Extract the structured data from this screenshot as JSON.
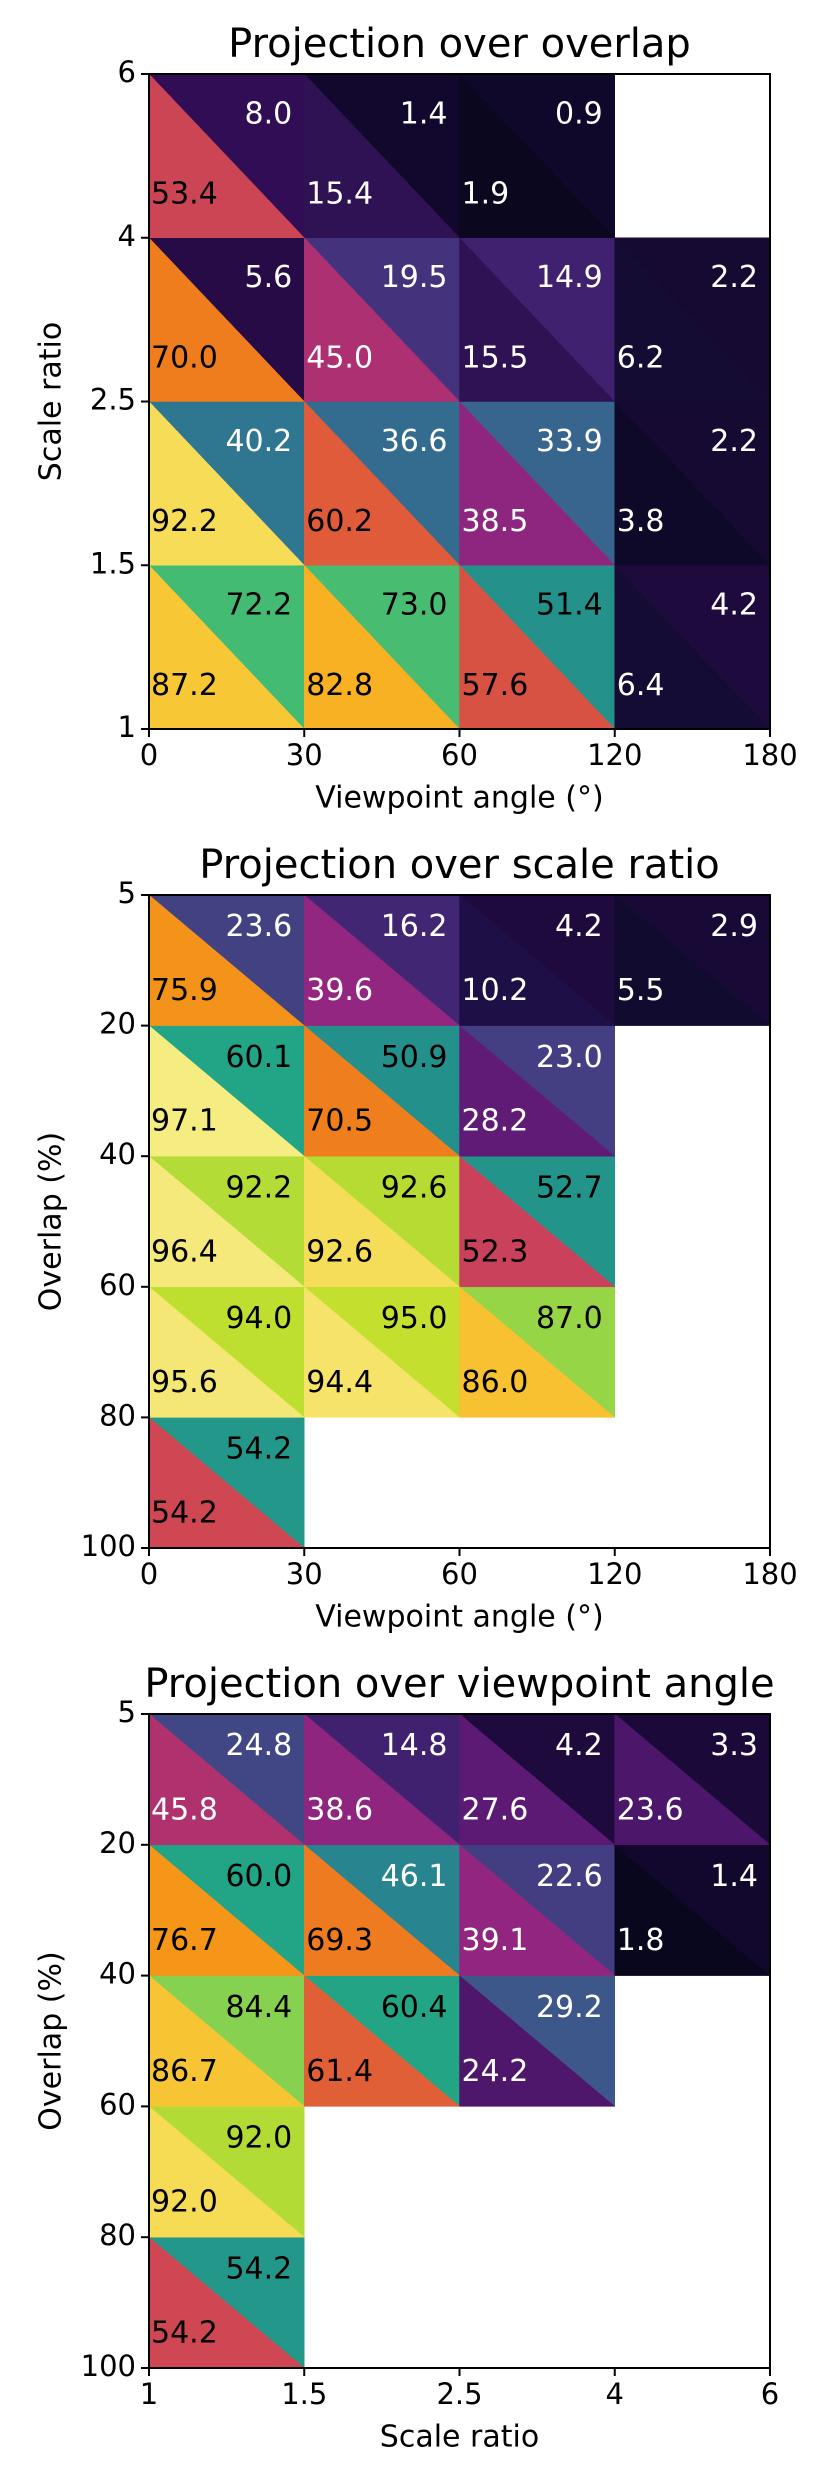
{
  "chart_data": [
    {
      "type": "triangle-heatmap",
      "title": "Projection over overlap",
      "xlabel": "Viewpoint angle (°)",
      "ylabel": "Scale ratio",
      "xticks": [
        0,
        30,
        60,
        120,
        180
      ],
      "yticks": [
        1,
        1.5,
        2.5,
        4,
        6
      ],
      "y_inverted": false,
      "clim": [
        0,
        100
      ],
      "upper": {
        "values": [
          [
            72.2,
            73.0,
            51.4,
            4.2
          ],
          [
            40.2,
            36.6,
            33.9,
            2.2
          ],
          [
            5.6,
            19.5,
            14.9,
            2.2
          ],
          [
            8.0,
            1.4,
            0.9,
            null
          ]
        ],
        "value_labels": [
          [
            "72.2",
            "73.0",
            "51.4",
            "4.2"
          ],
          [
            "40.2",
            "36.6",
            "33.9",
            "2.2"
          ],
          [
            "5.6",
            "19.5",
            "14.9",
            "2.2"
          ],
          [
            "8.0",
            "1.4",
            "0.9",
            null
          ]
        ]
      },
      "lower": {
        "values": [
          [
            87.2,
            82.8,
            57.6,
            6.4
          ],
          [
            92.2,
            60.2,
            38.5,
            3.8
          ],
          [
            70.0,
            45.0,
            15.5,
            6.2
          ],
          [
            53.4,
            15.4,
            1.9,
            null
          ]
        ],
        "value_labels": [
          [
            "87.2",
            "82.8",
            "57.6",
            "6.4"
          ],
          [
            "92.2",
            "60.2",
            "38.5",
            "3.8"
          ],
          [
            "70.0",
            "45.0",
            "15.5",
            "6.2"
          ],
          [
            "53.4",
            "15.4",
            "1.9",
            null
          ]
        ]
      },
      "colormaps": {
        "upper": [
          "#0b0724",
          "#3b0f63",
          "#45347e",
          "#3d5a8c",
          "#2f7590",
          "#248e8c",
          "#22a486",
          "#38b779",
          "#6ccb5e",
          "#a8d93c",
          "#dfe51f"
        ],
        "lower": [
          "#050516",
          "#1d1045",
          "#3c1461",
          "#681c7a",
          "#952680",
          "#c23a63",
          "#df5a3a",
          "#ef7d1d",
          "#f8a316",
          "#f6d543",
          "#f4f59c"
        ]
      }
    },
    {
      "type": "triangle-heatmap",
      "title": "Projection over scale ratio",
      "xlabel": "Viewpoint angle (°)",
      "ylabel": "Overlap (%)",
      "xticks": [
        0,
        30,
        60,
        120,
        180
      ],
      "yticks": [
        5,
        20,
        40,
        60,
        80,
        100
      ],
      "y_inverted": true,
      "clim": [
        0,
        100
      ],
      "upper": {
        "values": [
          [
            23.6,
            16.2,
            4.2,
            2.9
          ],
          [
            60.1,
            50.9,
            23.0,
            null
          ],
          [
            92.2,
            92.6,
            52.7,
            null
          ],
          [
            94.0,
            95.0,
            87.0,
            null
          ],
          [
            54.2,
            null,
            null,
            null
          ]
        ],
        "value_labels": [
          [
            "23.6",
            "16.2",
            "4.2",
            "2.9"
          ],
          [
            "60.1",
            "50.9",
            "23.0",
            null
          ],
          [
            "92.2",
            "92.6",
            "52.7",
            null
          ],
          [
            "94.0",
            "95.0",
            "87.0",
            null
          ],
          [
            "54.2",
            null,
            null,
            null
          ]
        ]
      },
      "lower": {
        "values": [
          [
            75.9,
            39.6,
            10.2,
            5.5
          ],
          [
            97.1,
            70.5,
            28.2,
            null
          ],
          [
            96.4,
            92.6,
            52.3,
            null
          ],
          [
            95.6,
            94.4,
            86.0,
            null
          ],
          [
            54.2,
            null,
            null,
            null
          ]
        ],
        "value_labels": [
          [
            "75.9",
            "39.6",
            "10.2",
            "5.5"
          ],
          [
            "97.1",
            "70.5",
            "28.2",
            null
          ],
          [
            "96.4",
            "92.6",
            "52.3",
            null
          ],
          [
            "95.6",
            "94.4",
            "86.0",
            null
          ],
          [
            "54.2",
            null,
            null,
            null
          ]
        ]
      },
      "colormaps": {
        "upper": [
          "#0b0724",
          "#3b0f63",
          "#45347e",
          "#3d5a8c",
          "#2f7590",
          "#248e8c",
          "#22a486",
          "#38b779",
          "#6ccb5e",
          "#a8d93c",
          "#dfe51f"
        ],
        "lower": [
          "#050516",
          "#1d1045",
          "#3c1461",
          "#681c7a",
          "#952680",
          "#c23a63",
          "#df5a3a",
          "#ef7d1d",
          "#f8a316",
          "#f6d543",
          "#f4f59c"
        ]
      }
    },
    {
      "type": "triangle-heatmap",
      "title": "Projection over viewpoint angle",
      "xlabel": "Scale ratio",
      "ylabel": "Overlap (%)",
      "xticks": [
        1,
        1.5,
        2.5,
        4,
        6
      ],
      "yticks": [
        5,
        20,
        40,
        60,
        80,
        100
      ],
      "y_inverted": true,
      "clim": [
        0,
        100
      ],
      "upper": {
        "values": [
          [
            24.8,
            14.8,
            4.2,
            3.3
          ],
          [
            60.0,
            46.1,
            22.6,
            1.4
          ],
          [
            84.4,
            60.4,
            29.2,
            null
          ],
          [
            92.0,
            null,
            null,
            null
          ],
          [
            54.2,
            null,
            null,
            null
          ]
        ],
        "value_labels": [
          [
            "24.8",
            "14.8",
            "4.2",
            "3.3"
          ],
          [
            "60.0",
            "46.1",
            "22.6",
            "1.4"
          ],
          [
            "84.4",
            "60.4",
            "29.2",
            null
          ],
          [
            "92.0",
            null,
            null,
            null
          ],
          [
            "54.2",
            null,
            null,
            null
          ]
        ]
      },
      "lower": {
        "values": [
          [
            45.8,
            38.6,
            27.6,
            23.6
          ],
          [
            76.7,
            69.3,
            39.1,
            1.8
          ],
          [
            86.7,
            61.4,
            24.2,
            null
          ],
          [
            92.0,
            null,
            null,
            null
          ],
          [
            54.2,
            null,
            null,
            null
          ]
        ],
        "value_labels": [
          [
            "45.8",
            "38.6",
            "27.6",
            "23.6"
          ],
          [
            "76.7",
            "69.3",
            "39.1",
            "1.8"
          ],
          [
            "86.7",
            "61.4",
            "24.2",
            null
          ],
          [
            "92.0",
            null,
            null,
            null
          ],
          [
            "54.2",
            null,
            null,
            null
          ]
        ]
      },
      "colormaps": {
        "upper": [
          "#0b0724",
          "#3b0f63",
          "#45347e",
          "#3d5a8c",
          "#2f7590",
          "#248e8c",
          "#22a486",
          "#38b779",
          "#6ccb5e",
          "#a8d93c",
          "#dfe51f"
        ],
        "lower": [
          "#050516",
          "#1d1045",
          "#3c1461",
          "#681c7a",
          "#952680",
          "#c23a63",
          "#df5a3a",
          "#ef7d1d",
          "#f8a316",
          "#f6d543",
          "#f4f59c"
        ]
      }
    }
  ]
}
